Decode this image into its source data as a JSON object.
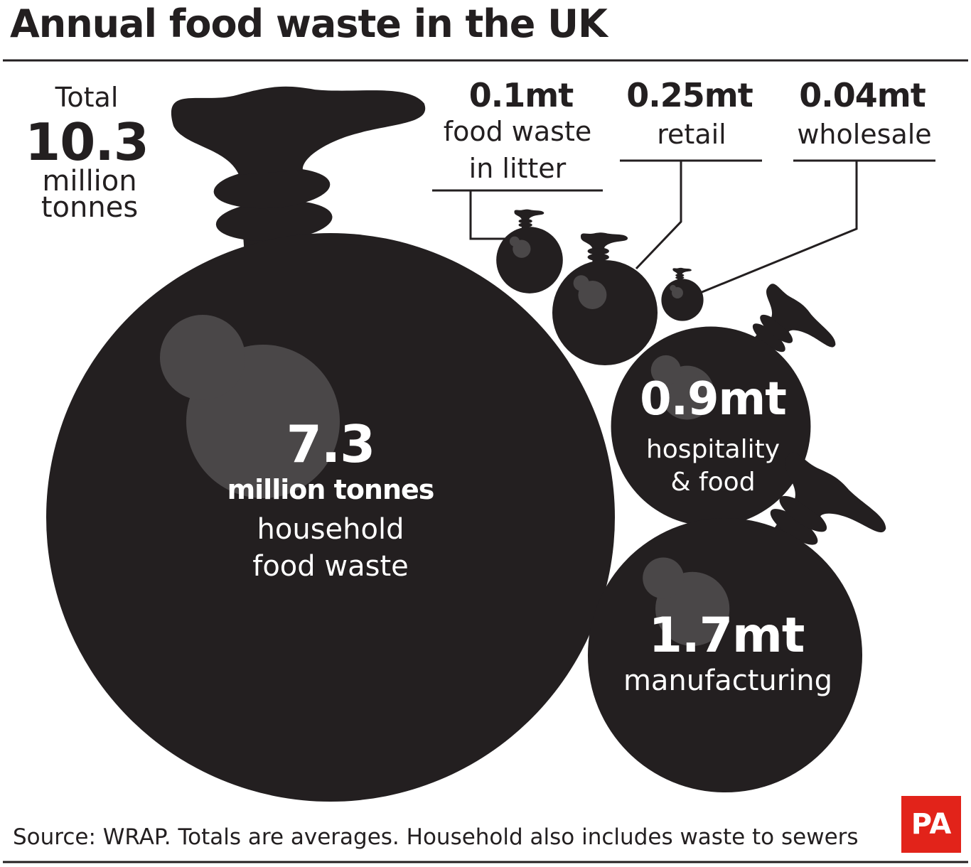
{
  "chart_data": {
    "type": "bubble",
    "title": "Annual food waste in the UK",
    "total_label": "Total",
    "total": 10.3,
    "total_unit": "million tonnes",
    "categories": [
      "household food waste",
      "hospitality & food",
      "manufacturing",
      "food waste in litter",
      "retail",
      "wholesale"
    ],
    "values": [
      7.3,
      0.9,
      1.7,
      0.1,
      0.25,
      0.04
    ],
    "value_labels": [
      "7.3",
      "0.9mt",
      "1.7mt",
      "0.1mt",
      "0.25mt",
      "0.04mt"
    ],
    "household_unit": "million tonnes",
    "color": "#231f20",
    "highlight_color": "#4a4748",
    "source": "Source: WRAP. Totals are averages. Household also includes waste to sewers",
    "logo": "PA"
  }
}
